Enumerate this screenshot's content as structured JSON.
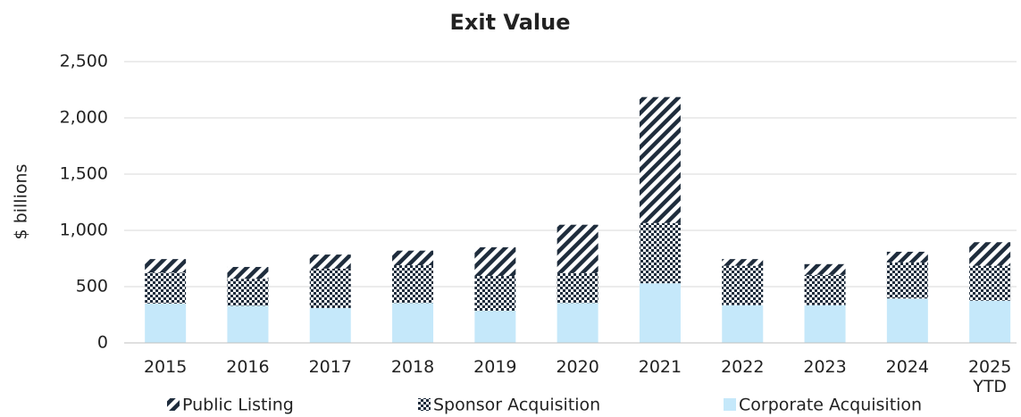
{
  "chart_data": {
    "type": "stacked_bar",
    "title": "Exit Value",
    "y_label": "$ billions",
    "categories": [
      "2015",
      "2016",
      "2017",
      "2018",
      "2019",
      "2020",
      "2021",
      "2022",
      "2023",
      "2024",
      "2025 YTD"
    ],
    "series": [
      {
        "name": "Public Listing",
        "color": "#1f2d3d",
        "pattern": "diagonal",
        "values": [
          120,
          105,
          125,
          130,
          255,
          430,
          1120,
          60,
          95,
          95,
          210
        ]
      },
      {
        "name": "Sponsor Acquisition",
        "color": "#1f2d3d",
        "pattern": "checker",
        "values": [
          275,
          240,
          350,
          335,
          310,
          265,
          535,
          350,
          270,
          320,
          310
        ]
      },
      {
        "name": "Corporate Acquisition",
        "color": "#c5e8fa",
        "pattern": "solid",
        "values": [
          350,
          330,
          310,
          355,
          285,
          355,
          530,
          335,
          335,
          395,
          375
        ]
      }
    ],
    "ylim": [
      0,
      2500
    ],
    "yticks": [
      0,
      {
        "value": 500,
        "label": "500"
      },
      {
        "value": 1000,
        "label": "1,000"
      },
      {
        "value": 1500,
        "label": "1,500"
      },
      {
        "value": 2000,
        "label": "2,000"
      },
      {
        "value": 2500,
        "label": "2,500"
      }
    ],
    "grid": true,
    "legend": "bottom"
  }
}
